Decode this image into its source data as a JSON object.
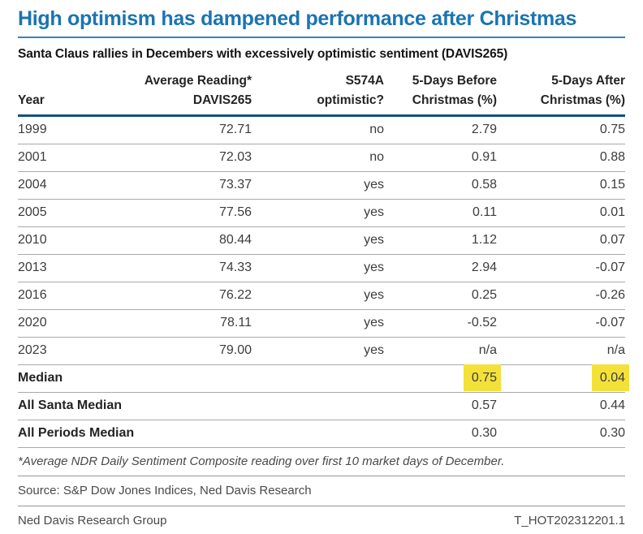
{
  "title": "High optimism has dampened performance after Christmas",
  "subtitle": "Santa Claus rallies in Decembers with excessively optimistic sentiment (DAVIS265)",
  "table": {
    "headers": [
      {
        "lines": [
          "Year"
        ]
      },
      {
        "lines": [
          "Average Reading*",
          "DAVIS265"
        ]
      },
      {
        "lines": [
          "S574A",
          "optimistic?"
        ]
      },
      {
        "lines": [
          "5-Days Before",
          "Christmas (%)"
        ]
      },
      {
        "lines": [
          "5-Days After",
          "Christmas (%)"
        ]
      }
    ],
    "rows": [
      {
        "label": "1999",
        "bold_label": false,
        "cells": [
          "72.71",
          "no",
          "2.79",
          "0.75"
        ],
        "highlight": []
      },
      {
        "label": "2001",
        "bold_label": false,
        "cells": [
          "72.03",
          "no",
          "0.91",
          "0.88"
        ],
        "highlight": []
      },
      {
        "label": "2004",
        "bold_label": false,
        "cells": [
          "73.37",
          "yes",
          "0.58",
          "0.15"
        ],
        "highlight": []
      },
      {
        "label": "2005",
        "bold_label": false,
        "cells": [
          "77.56",
          "yes",
          "0.11",
          "0.01"
        ],
        "highlight": []
      },
      {
        "label": "2010",
        "bold_label": false,
        "cells": [
          "80.44",
          "yes",
          "1.12",
          "0.07"
        ],
        "highlight": []
      },
      {
        "label": "2013",
        "bold_label": false,
        "cells": [
          "74.33",
          "yes",
          "2.94",
          "-0.07"
        ],
        "highlight": []
      },
      {
        "label": "2016",
        "bold_label": false,
        "cells": [
          "76.22",
          "yes",
          "0.25",
          "-0.26"
        ],
        "highlight": []
      },
      {
        "label": "2020",
        "bold_label": false,
        "cells": [
          "78.11",
          "yes",
          "-0.52",
          "-0.07"
        ],
        "highlight": []
      },
      {
        "label": "2023",
        "bold_label": false,
        "cells": [
          "79.00",
          "yes",
          "n/a",
          "n/a"
        ],
        "highlight": []
      },
      {
        "label": "Median",
        "bold_label": true,
        "cells": [
          "",
          "",
          "0.75",
          "0.04"
        ],
        "highlight": [
          2,
          3
        ]
      },
      {
        "label": "All Santa Median",
        "bold_label": true,
        "cells": [
          "",
          "",
          "0.57",
          "0.44"
        ],
        "highlight": []
      },
      {
        "label": "All Periods Median",
        "bold_label": true,
        "cells": [
          "",
          "",
          "0.30",
          "0.30"
        ],
        "highlight": []
      }
    ]
  },
  "footnote": "*Average NDR Daily Sentiment Composite reading over first 10 market days of December.",
  "source": "Source: S&P Dow Jones Indices, Ned Davis Research",
  "footer": {
    "left": "Ned Davis Research Group",
    "right": "T_HOT202312201.1"
  },
  "colors": {
    "title_blue": "#1B74B2",
    "title_rule_blue": "#2E86C1",
    "header_border_blue": "#15517C",
    "row_border_gray": "#a7aaac",
    "highlight_yellow": "#F3E139"
  },
  "chart_data": {
    "type": "table",
    "title": "High optimism has dampened performance after Christmas",
    "subtitle": "Santa Claus rallies in Decembers with excessively optimistic sentiment (DAVIS265)",
    "columns": [
      "Year",
      "Average Reading* DAVIS265",
      "S574A optimistic?",
      "5-Days Before Christmas (%)",
      "5-Days After Christmas (%)"
    ],
    "rows": [
      [
        "1999",
        72.71,
        "no",
        2.79,
        0.75
      ],
      [
        "2001",
        72.03,
        "no",
        0.91,
        0.88
      ],
      [
        "2004",
        73.37,
        "yes",
        0.58,
        0.15
      ],
      [
        "2005",
        77.56,
        "yes",
        0.11,
        0.01
      ],
      [
        "2010",
        80.44,
        "yes",
        1.12,
        0.07
      ],
      [
        "2013",
        74.33,
        "yes",
        2.94,
        -0.07
      ],
      [
        "2016",
        76.22,
        "yes",
        0.25,
        -0.26
      ],
      [
        "2020",
        78.11,
        "yes",
        -0.52,
        -0.07
      ],
      [
        "2023",
        79.0,
        "yes",
        "n/a",
        "n/a"
      ],
      [
        "Median",
        null,
        null,
        0.75,
        0.04
      ],
      [
        "All Santa Median",
        null,
        null,
        0.57,
        0.44
      ],
      [
        "All Periods Median",
        null,
        null,
        0.3,
        0.3
      ]
    ],
    "highlighted_cells": [
      {
        "row": "Median",
        "column": "5-Days Before Christmas (%)",
        "value": 0.75
      },
      {
        "row": "Median",
        "column": "5-Days After Christmas (%)",
        "value": 0.04
      }
    ],
    "footnote": "*Average NDR Daily Sentiment Composite reading over first 10 market days of December.",
    "source": "Source: S&P Dow Jones Indices, Ned Davis Research"
  }
}
